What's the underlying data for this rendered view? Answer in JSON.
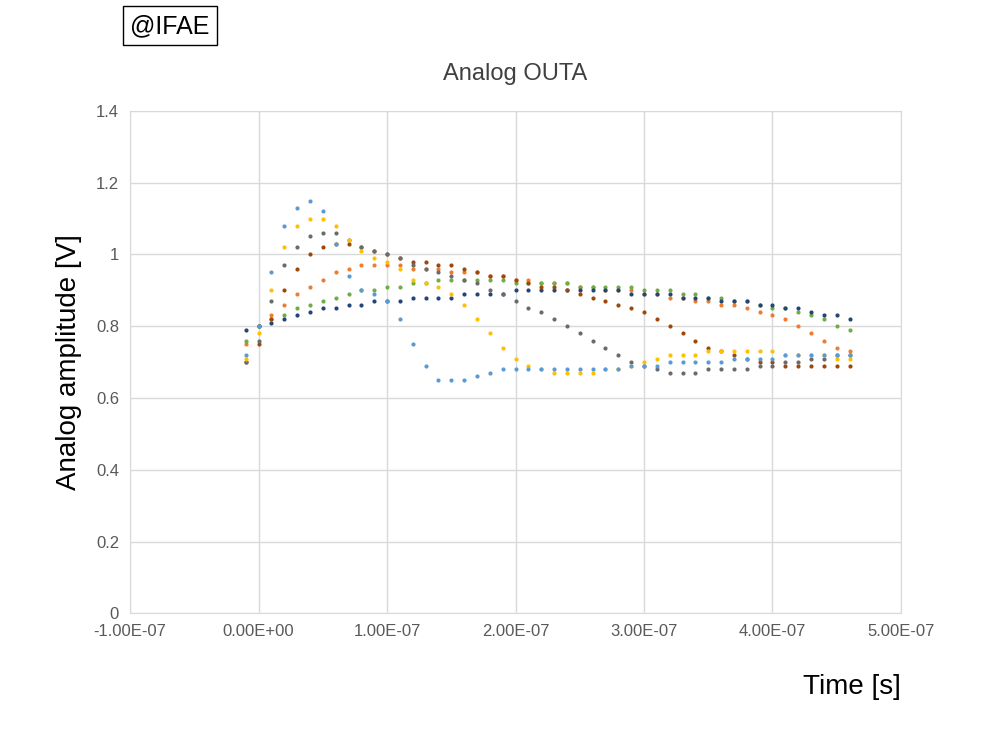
{
  "chart_data": {
    "type": "scatter",
    "title": "Analog OUTA",
    "x_label": "Time [s]",
    "y_label": "Analog amplitude [V]",
    "annotation": "@IFAE",
    "marker": "o",
    "grid": true,
    "xlim": [
      -1e-07,
      5e-07
    ],
    "xticks": [
      {
        "value": -1e-07,
        "label": "-1.00E-07"
      },
      {
        "value": 0,
        "label": "0.00E+00"
      },
      {
        "value": 1e-07,
        "label": "1.00E-07"
      },
      {
        "value": 2e-07,
        "label": "2.00E-07"
      },
      {
        "value": 3e-07,
        "label": "3.00E-07"
      },
      {
        "value": 4e-07,
        "label": "4.00E-07"
      },
      {
        "value": 5e-07,
        "label": "5.00E-07"
      }
    ],
    "ylim": [
      0,
      1.4
    ],
    "yticks": [
      0,
      0.2,
      0.4,
      0.6,
      0.8,
      1,
      1.2,
      1.4
    ],
    "x": [
      -1e-08,
      0,
      1e-08,
      2e-08,
      3e-08,
      4e-08,
      5e-08,
      6e-08,
      7e-08,
      8e-08,
      9e-08,
      1e-07,
      1.1e-07,
      1.2e-07,
      1.3e-07,
      1.4e-07,
      1.5e-07,
      1.6e-07,
      1.7e-07,
      1.8e-07,
      1.9e-07,
      2e-07,
      2.1e-07,
      2.2e-07,
      2.3e-07,
      2.4e-07,
      2.5e-07,
      2.6e-07,
      2.7e-07,
      2.8e-07,
      2.9e-07,
      3e-07,
      3.1e-07,
      3.2e-07,
      3.3e-07,
      3.4e-07,
      3.5e-07,
      3.6e-07,
      3.7e-07,
      3.8e-07,
      3.9e-07,
      4e-07,
      4.1e-07,
      4.2e-07,
      4.3e-07,
      4.4e-07,
      4.5e-07,
      4.6e-07
    ],
    "series": [
      {
        "color": "#ED7D31",
        "values": [
          0.75,
          0.8,
          0.83,
          0.86,
          0.89,
          0.91,
          0.93,
          0.95,
          0.96,
          0.97,
          0.97,
          0.97,
          0.97,
          0.96,
          0.96,
          0.96,
          0.95,
          0.95,
          0.95,
          0.94,
          0.94,
          0.93,
          0.93,
          0.92,
          0.92,
          0.92,
          0.91,
          0.91,
          0.9,
          0.9,
          0.9,
          0.89,
          0.89,
          0.88,
          0.88,
          0.87,
          0.87,
          0.86,
          0.86,
          0.85,
          0.84,
          0.83,
          0.82,
          0.8,
          0.78,
          0.76,
          0.74,
          0.73
        ]
      },
      {
        "color": "#70AD47",
        "values": [
          0.76,
          0.8,
          0.82,
          0.83,
          0.85,
          0.86,
          0.87,
          0.88,
          0.89,
          0.9,
          0.9,
          0.91,
          0.91,
          0.92,
          0.92,
          0.93,
          0.93,
          0.93,
          0.93,
          0.93,
          0.93,
          0.92,
          0.92,
          0.92,
          0.92,
          0.92,
          0.91,
          0.91,
          0.91,
          0.91,
          0.91,
          0.9,
          0.9,
          0.9,
          0.89,
          0.89,
          0.88,
          0.88,
          0.87,
          0.87,
          0.86,
          0.85,
          0.85,
          0.84,
          0.83,
          0.82,
          0.8,
          0.79
        ]
      },
      {
        "color": "#264478",
        "values": [
          0.79,
          0.8,
          0.81,
          0.82,
          0.83,
          0.84,
          0.85,
          0.85,
          0.86,
          0.86,
          0.87,
          0.87,
          0.87,
          0.88,
          0.88,
          0.88,
          0.88,
          0.89,
          0.89,
          0.89,
          0.89,
          0.9,
          0.9,
          0.9,
          0.9,
          0.9,
          0.9,
          0.9,
          0.9,
          0.9,
          0.89,
          0.89,
          0.89,
          0.89,
          0.88,
          0.88,
          0.88,
          0.87,
          0.87,
          0.87,
          0.86,
          0.86,
          0.85,
          0.85,
          0.84,
          0.83,
          0.83,
          0.82
        ]
      },
      {
        "color": "#9E480E",
        "values": [
          0.7,
          0.75,
          0.82,
          0.9,
          0.96,
          1.0,
          1.02,
          1.03,
          1.03,
          1.02,
          1.01,
          1.0,
          0.99,
          0.98,
          0.98,
          0.97,
          0.97,
          0.96,
          0.95,
          0.94,
          0.94,
          0.93,
          0.92,
          0.91,
          0.91,
          0.9,
          0.89,
          0.88,
          0.87,
          0.86,
          0.85,
          0.84,
          0.82,
          0.8,
          0.78,
          0.76,
          0.74,
          0.73,
          0.72,
          0.71,
          0.7,
          0.7,
          0.69,
          0.69,
          0.69,
          0.69,
          0.69,
          0.69
        ]
      },
      {
        "color": "#6B6B6B",
        "values": [
          0.7,
          0.76,
          0.87,
          0.97,
          1.02,
          1.05,
          1.06,
          1.06,
          1.04,
          1.02,
          1.01,
          1.0,
          0.99,
          0.97,
          0.96,
          0.95,
          0.94,
          0.93,
          0.92,
          0.9,
          0.89,
          0.87,
          0.85,
          0.84,
          0.82,
          0.8,
          0.78,
          0.76,
          0.74,
          0.72,
          0.7,
          0.69,
          0.68,
          0.67,
          0.67,
          0.67,
          0.68,
          0.68,
          0.68,
          0.68,
          0.69,
          0.69,
          0.7,
          0.7,
          0.71,
          0.71,
          0.72,
          0.72
        ]
      },
      {
        "color": "#FFC000",
        "values": [
          0.71,
          0.78,
          0.9,
          1.02,
          1.08,
          1.1,
          1.1,
          1.08,
          1.04,
          1.01,
          0.99,
          0.98,
          0.96,
          0.93,
          0.92,
          0.91,
          0.89,
          0.86,
          0.82,
          0.78,
          0.74,
          0.71,
          0.69,
          0.68,
          0.67,
          0.67,
          0.67,
          0.67,
          0.68,
          0.68,
          0.69,
          0.7,
          0.71,
          0.72,
          0.72,
          0.72,
          0.73,
          0.73,
          0.73,
          0.73,
          0.73,
          0.73,
          0.72,
          0.72,
          0.72,
          0.72,
          0.71,
          0.71
        ]
      },
      {
        "color": "#5B9BD5",
        "values": [
          0.72,
          0.8,
          0.95,
          1.08,
          1.13,
          1.15,
          1.12,
          1.03,
          0.94,
          0.9,
          0.89,
          0.87,
          0.82,
          0.75,
          0.69,
          0.65,
          0.65,
          0.65,
          0.66,
          0.67,
          0.68,
          0.68,
          0.68,
          0.68,
          0.68,
          0.68,
          0.68,
          0.68,
          0.68,
          0.68,
          0.69,
          0.69,
          0.69,
          0.7,
          0.7,
          0.7,
          0.7,
          0.7,
          0.71,
          0.71,
          0.71,
          0.71,
          0.72,
          0.72,
          0.72,
          0.72,
          0.72,
          0.72
        ]
      }
    ]
  }
}
